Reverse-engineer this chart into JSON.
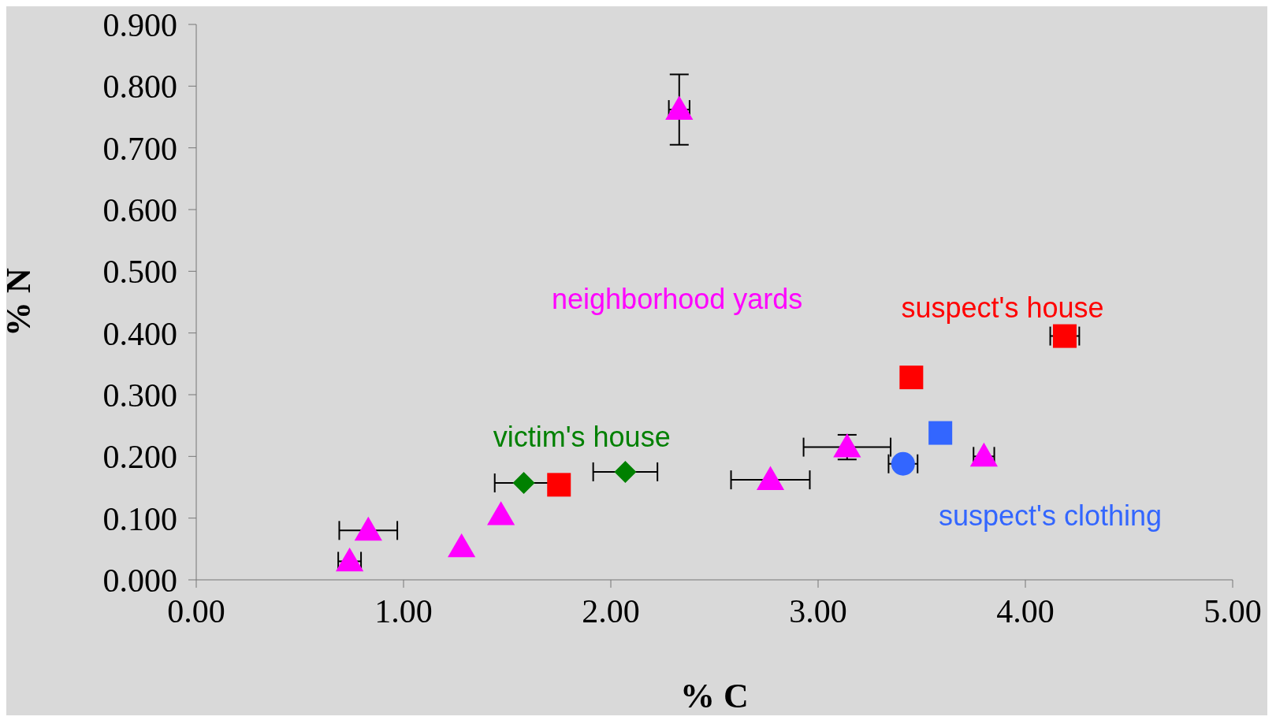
{
  "chart_data": {
    "type": "scatter",
    "xlabel": "% C",
    "ylabel": "% N",
    "xlim": [
      0,
      5
    ],
    "ylim": [
      0,
      0.9
    ],
    "xticks": [
      {
        "value": 0,
        "label": "0.00"
      },
      {
        "value": 1,
        "label": "1.00"
      },
      {
        "value": 2,
        "label": "2.00"
      },
      {
        "value": 3,
        "label": "3.00"
      },
      {
        "value": 4,
        "label": "4.00"
      },
      {
        "value": 5,
        "label": "5.00"
      }
    ],
    "yticks": [
      {
        "value": 0,
        "label": "0.000"
      },
      {
        "value": 0.1,
        "label": "0.100"
      },
      {
        "value": 0.2,
        "label": "0.200"
      },
      {
        "value": 0.3,
        "label": "0.300"
      },
      {
        "value": 0.4,
        "label": "0.400"
      },
      {
        "value": 0.5,
        "label": "0.500"
      },
      {
        "value": 0.6,
        "label": "0.600"
      },
      {
        "value": 0.7,
        "label": "0.700"
      },
      {
        "value": 0.8,
        "label": "0.800"
      },
      {
        "value": 0.9,
        "label": "0.900"
      }
    ],
    "series": [
      {
        "name": "neighborhood yards",
        "color": "#ff00ff",
        "marker": "triangle",
        "x": [
          0.74,
          0.83,
          1.28,
          1.47,
          2.33,
          2.77,
          3.14,
          3.8
        ],
        "values": [
          0.03,
          0.08,
          0.053,
          0.105,
          0.762,
          0.162,
          0.215,
          0.2
        ],
        "xerrors": [
          0.055,
          0.14,
          null,
          null,
          0.05,
          0.19,
          0.21,
          0.05
        ],
        "errors": [
          null,
          null,
          null,
          null,
          0.057,
          null,
          0.02,
          null
        ]
      },
      {
        "name": "victim's house",
        "color": "#008000",
        "marker": "diamond",
        "x": [
          1.58,
          2.07
        ],
        "values": [
          0.157,
          0.175
        ],
        "xerrors": [
          0.14,
          0.155
        ],
        "errors": [
          null,
          null
        ]
      },
      {
        "name": "suspect's house",
        "color": "#ff0000",
        "marker": "square",
        "x": [
          1.75,
          3.45,
          4.19
        ],
        "values": [
          0.154,
          0.328,
          0.395
        ],
        "xerrors": [
          null,
          null,
          0.07
        ],
        "errors": [
          null,
          null,
          null
        ]
      },
      {
        "name": "suspect's clothing",
        "color": "#3366ff",
        "marker": "square",
        "x": [
          3.59
        ],
        "values": [
          0.238
        ],
        "xerrors": [
          null
        ],
        "errors": [
          null
        ]
      },
      {
        "color": "#3366ff",
        "marker": "circle",
        "x": [
          3.41
        ],
        "values": [
          0.188
        ],
        "xerrors": [
          0.07
        ],
        "errors": [
          null
        ]
      }
    ]
  }
}
